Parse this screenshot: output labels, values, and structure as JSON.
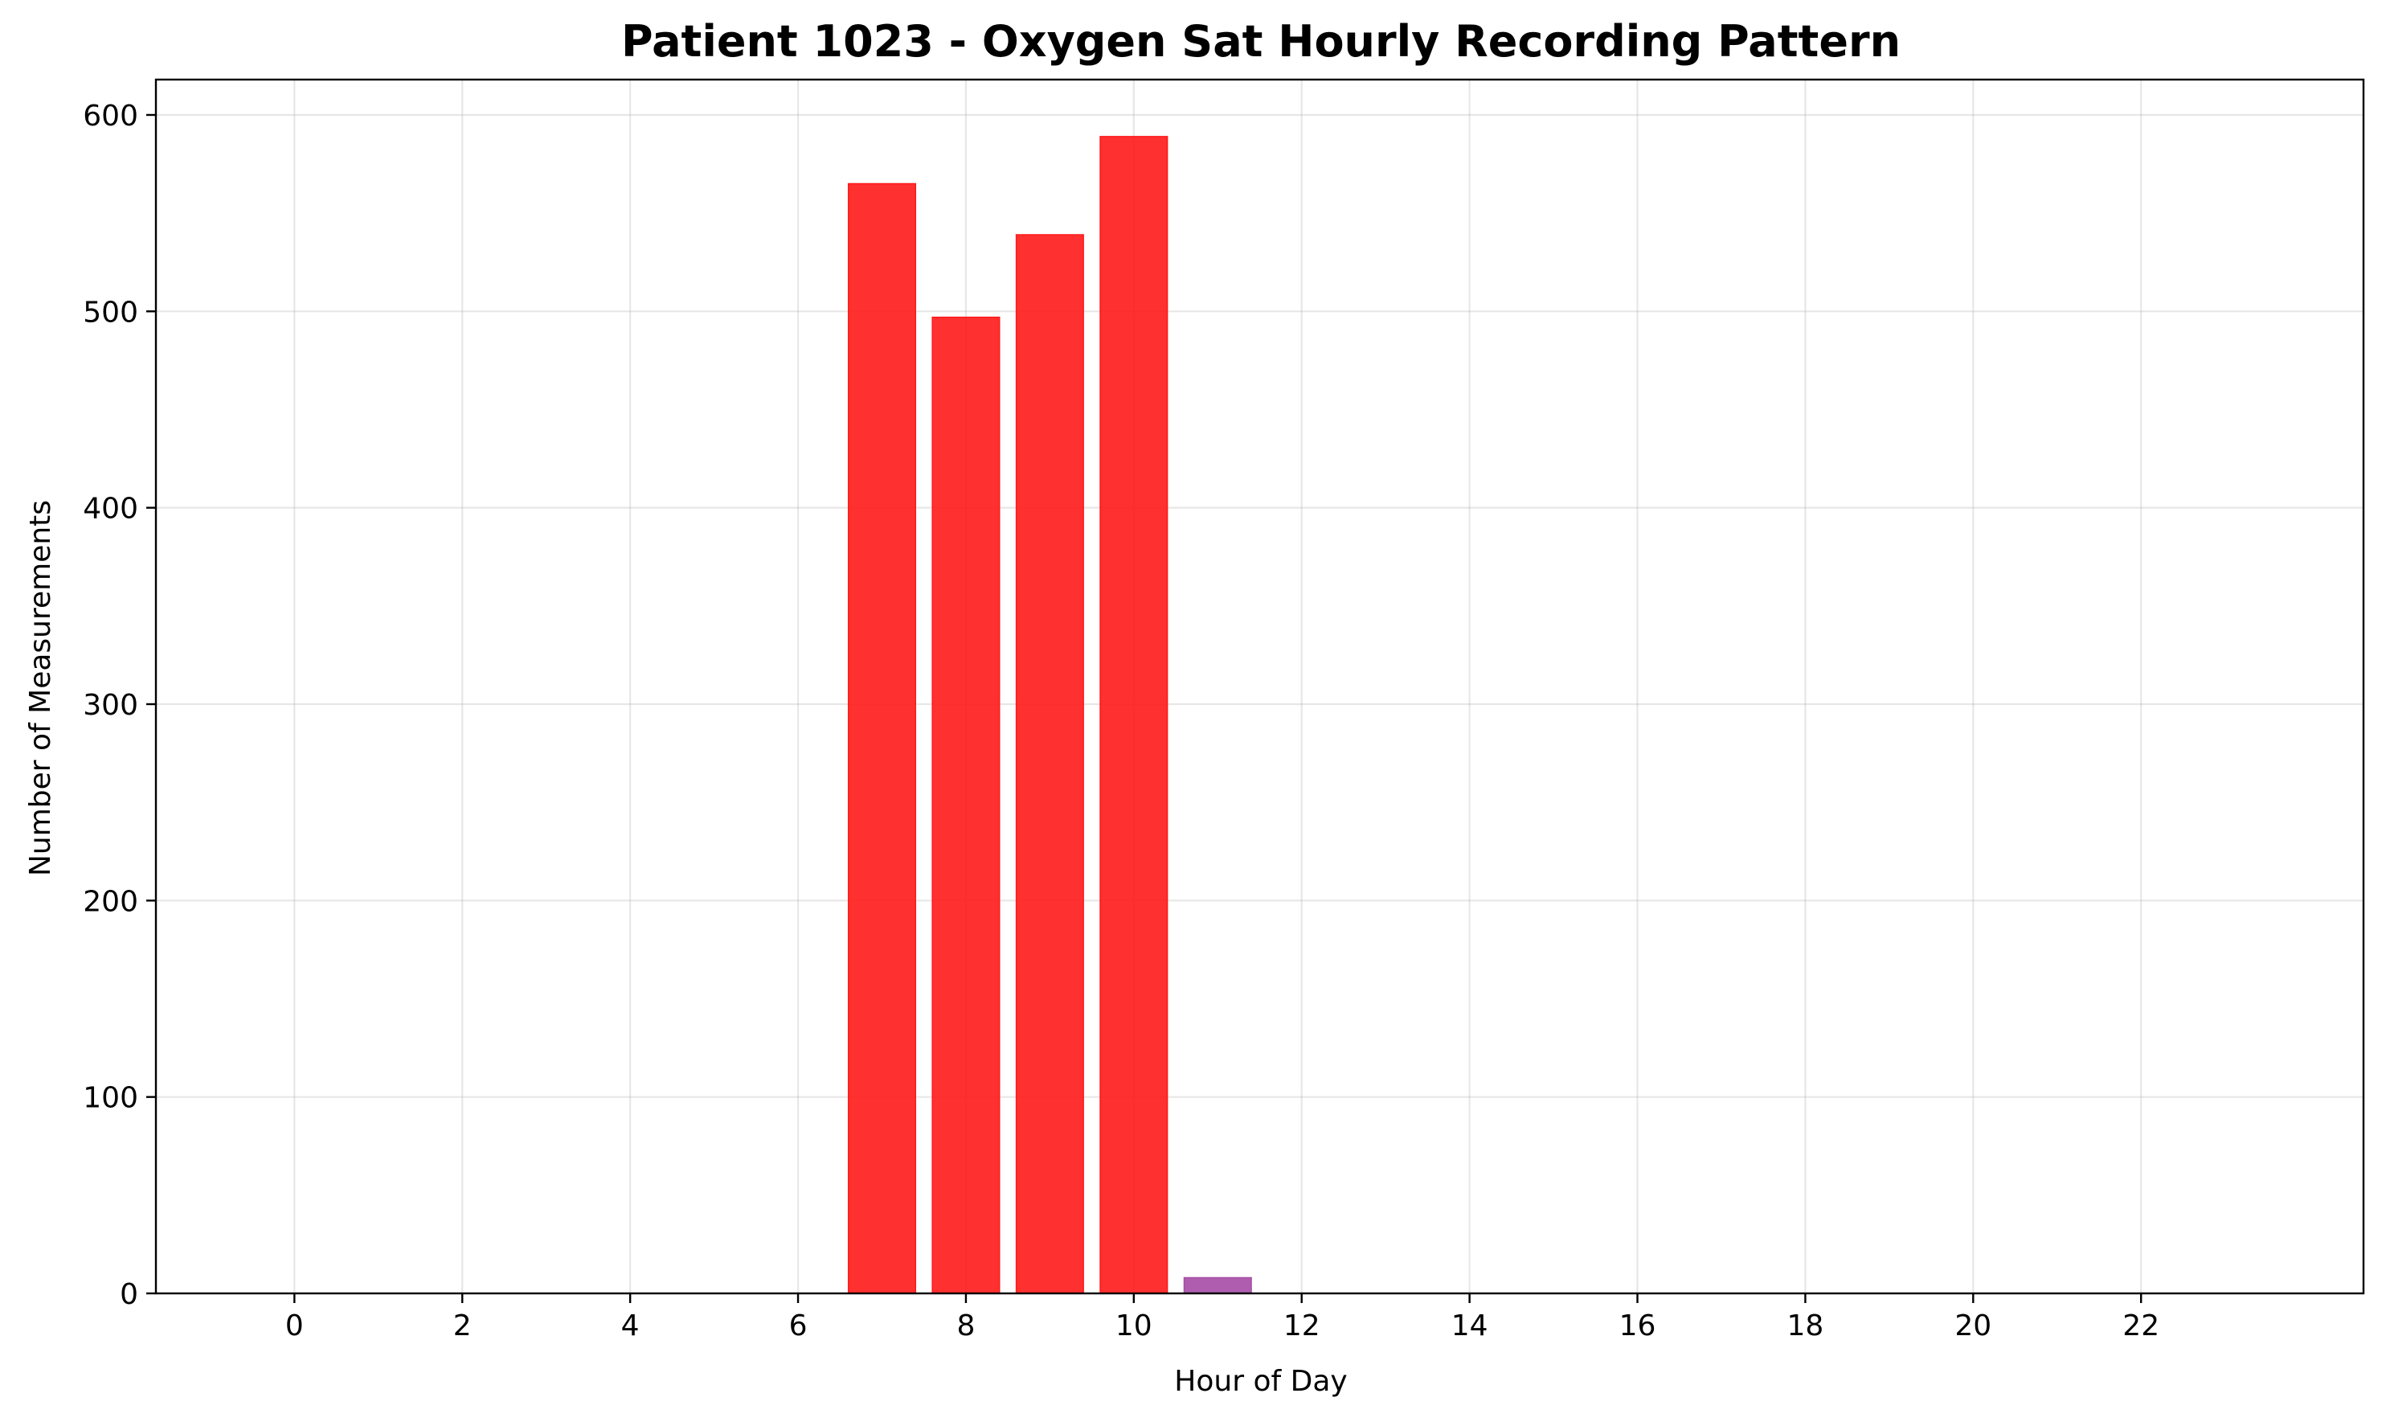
{
  "chart_data": {
    "type": "bar",
    "title": "Patient 1023 - Oxygen Sat Hourly Recording Pattern",
    "xlabel": "Hour of Day",
    "ylabel": "Number of Measurements",
    "xlim": [
      -1.65,
      24.65
    ],
    "ylim": [
      0,
      618
    ],
    "x_ticks": [
      0,
      2,
      4,
      6,
      8,
      10,
      12,
      14,
      16,
      18,
      20,
      22
    ],
    "y_ticks": [
      0,
      100,
      200,
      300,
      400,
      500,
      600
    ],
    "bar_width": 0.8,
    "grid": true,
    "bars": [
      {
        "x": 7,
        "value": 565,
        "color": "#ff1a1a"
      },
      {
        "x": 8,
        "value": 497,
        "color": "#ff1a1a"
      },
      {
        "x": 9,
        "value": 539,
        "color": "#ff1a1a"
      },
      {
        "x": 10,
        "value": 589,
        "color": "#ff1a1a"
      },
      {
        "x": 11,
        "value": 8,
        "color": "#a64ca6"
      }
    ]
  }
}
